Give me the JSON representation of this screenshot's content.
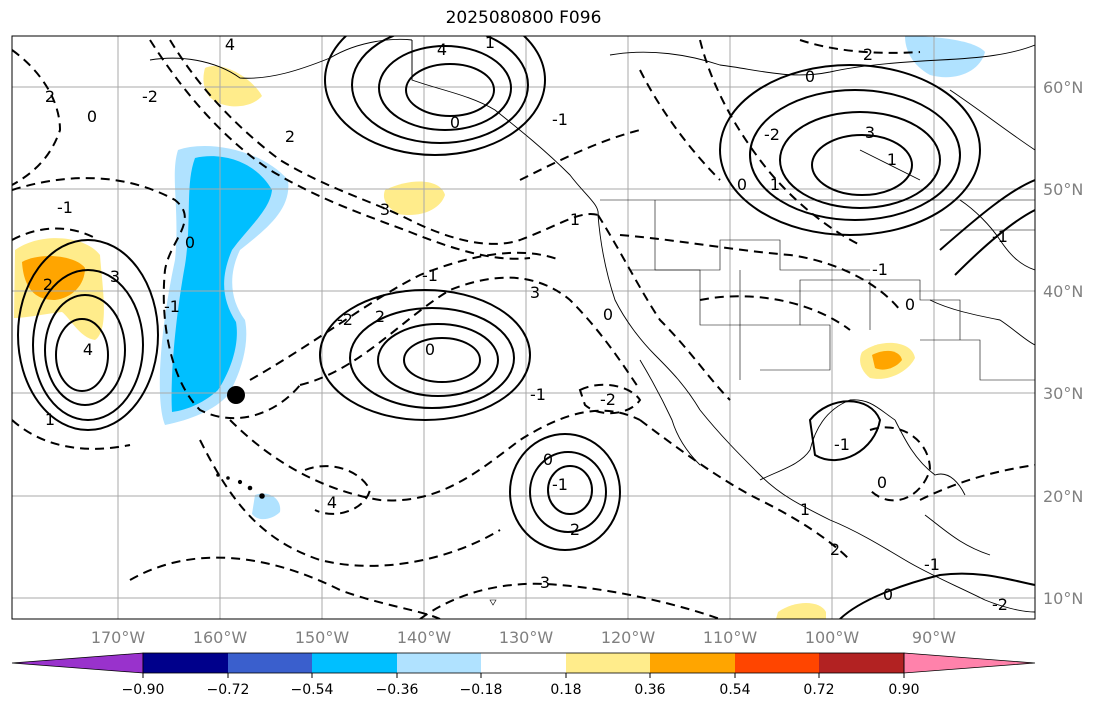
{
  "title": "2025080800 F096",
  "lon_labels": [
    "170°W",
    "160°W",
    "150°W",
    "140°W",
    "130°W",
    "120°W",
    "110°W",
    "100°W",
    "90°W"
  ],
  "lat_labels": [
    "60°N",
    "50°N",
    "40°N",
    "30°N",
    "20°N",
    "10°N"
  ],
  "colorbar": {
    "ticks": [
      "−0.90",
      "−0.72",
      "−0.54",
      "−0.36",
      "−0.18",
      "0.18",
      "0.36",
      "0.54",
      "0.72",
      "0.90"
    ],
    "colors": [
      "#9932cc",
      "#00008b",
      "#3a5fcd",
      "#00bfff",
      "#b0e2ff",
      "#ffffff",
      "#ffec8b",
      "#ffa500",
      "#ff4500",
      "#b22222",
      "#ff82ab"
    ]
  },
  "contour_labels": [
    "4",
    "2",
    "0",
    "-2",
    "-1",
    "3",
    "4",
    "2",
    "1",
    "0",
    "-1",
    "2",
    "3",
    "4",
    "0",
    "1",
    "-1",
    "-2",
    "0",
    "2",
    "3",
    "-1",
    "-2",
    "0",
    "-1",
    "2",
    "3",
    "4",
    "0",
    "1",
    "-1",
    "0",
    "-2",
    "2",
    "3",
    "1",
    "0",
    "1",
    "-1",
    "0",
    "-1",
    "0",
    "1",
    "2",
    "-1",
    "0",
    "-2",
    "-1"
  ],
  "marker": "station-dot"
}
